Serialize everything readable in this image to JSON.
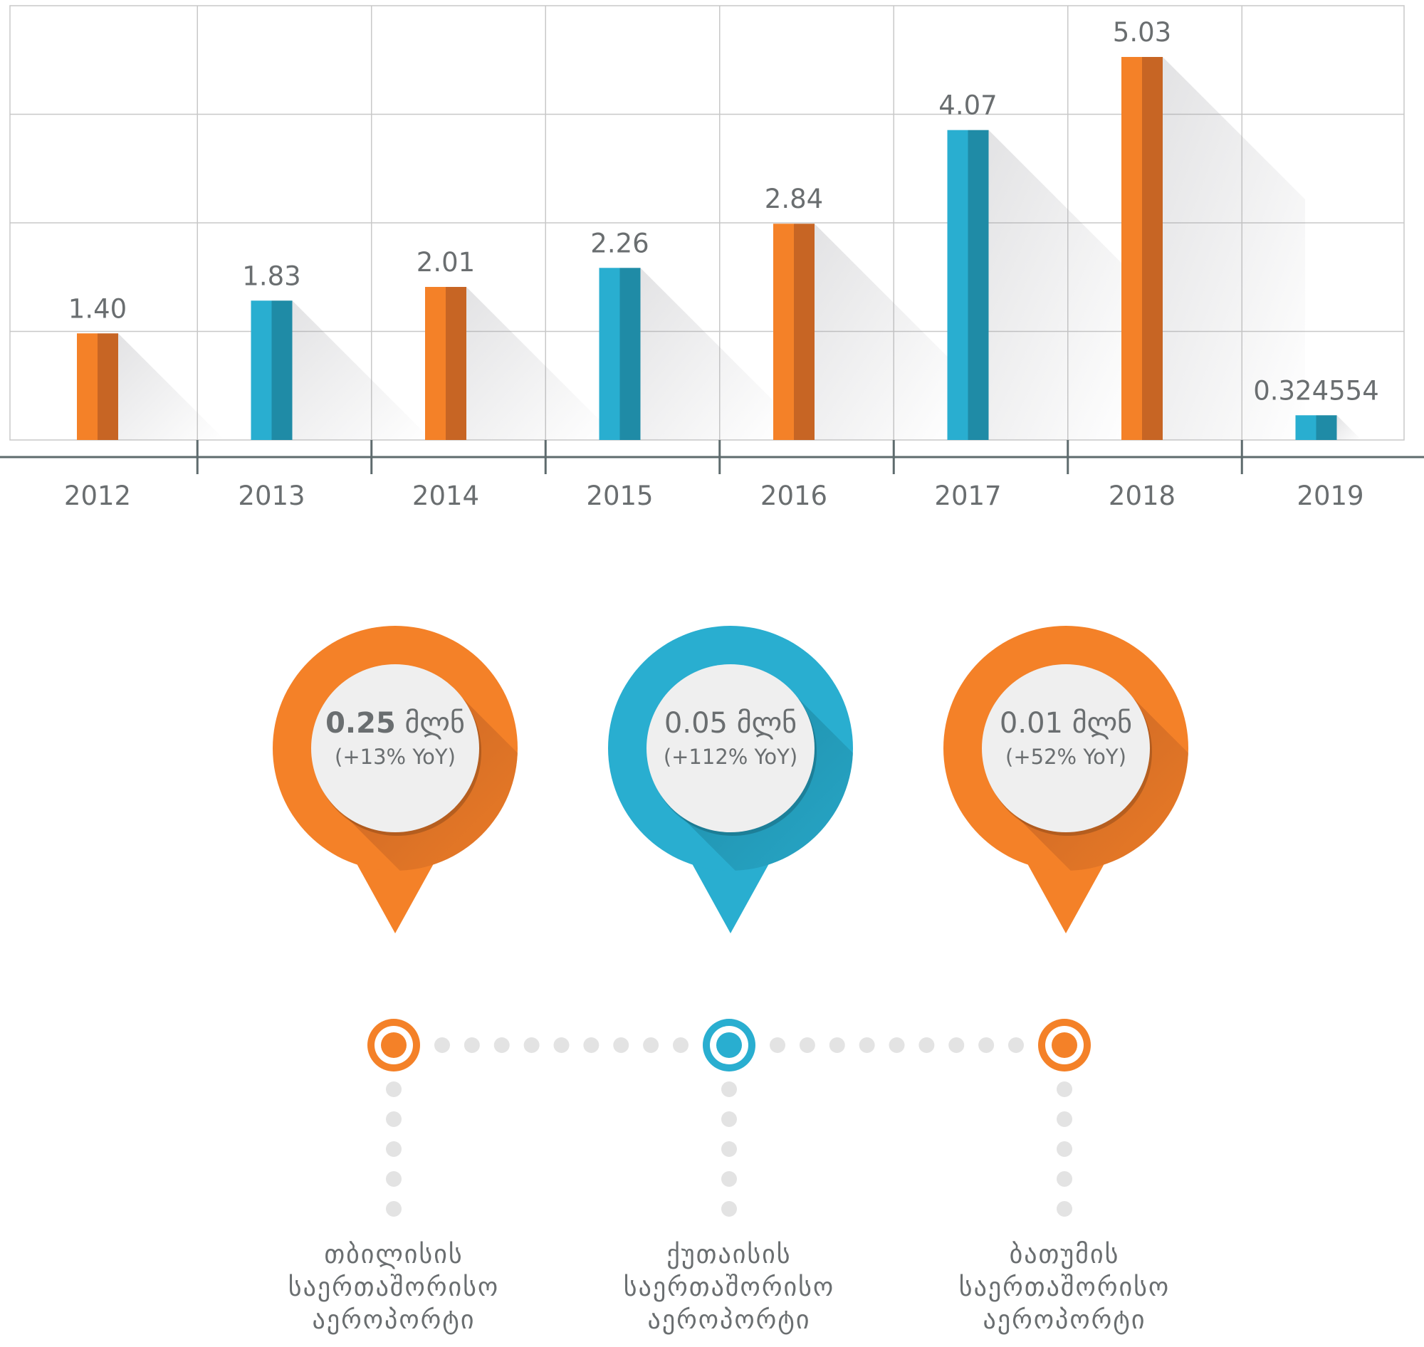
{
  "chart_data": {
    "type": "bar",
    "categories": [
      "2012",
      "2013",
      "2014",
      "2015",
      "2016",
      "2017",
      "2018",
      "2019"
    ],
    "values": [
      1.4,
      1.83,
      2.01,
      2.26,
      2.84,
      4.07,
      5.03,
      0.324554
    ],
    "value_labels": [
      "1.40",
      "1.83",
      "2.01",
      "2.26",
      "2.84",
      "4.07",
      "5.03",
      "0.324554"
    ],
    "title": "",
    "xlabel": "",
    "ylabel": "",
    "ylim": [
      0,
      6
    ],
    "grid": true,
    "colors": {
      "orange": "#f48128",
      "orange_dark": "#c76524",
      "blue": "#29aed0",
      "blue_dark": "#1f8ba6",
      "grid": "#c8c8c8",
      "axis": "#5e6b6d"
    },
    "bar_color_order": [
      "orange",
      "blue",
      "orange",
      "blue",
      "orange",
      "blue",
      "orange",
      "blue"
    ]
  },
  "airports": [
    {
      "value_number": "0.25",
      "value_unit": "მლნ",
      "change": "(+13% YoY)",
      "color": "#f48128",
      "color_dark": "#c76524",
      "name_lines": [
        "თბილისის",
        "საერთაშორისო",
        "აეროპორტი"
      ]
    },
    {
      "value_number": "0.05",
      "value_unit": "მლნ",
      "change": "(+112% YoY)",
      "color": "#29aed0",
      "color_dark": "#1f8ba6",
      "name_lines": [
        "ქუთაისის",
        "საერთაშორისო",
        "აეროპორტი"
      ]
    },
    {
      "value_number": "0.01",
      "value_unit": "მლნ",
      "change": "(+52% YoY)",
      "color": "#f48128",
      "color_dark": "#c76524",
      "name_lines": [
        "ბათუმის",
        "საერთაშორისო",
        "აეროპორტი"
      ]
    }
  ]
}
